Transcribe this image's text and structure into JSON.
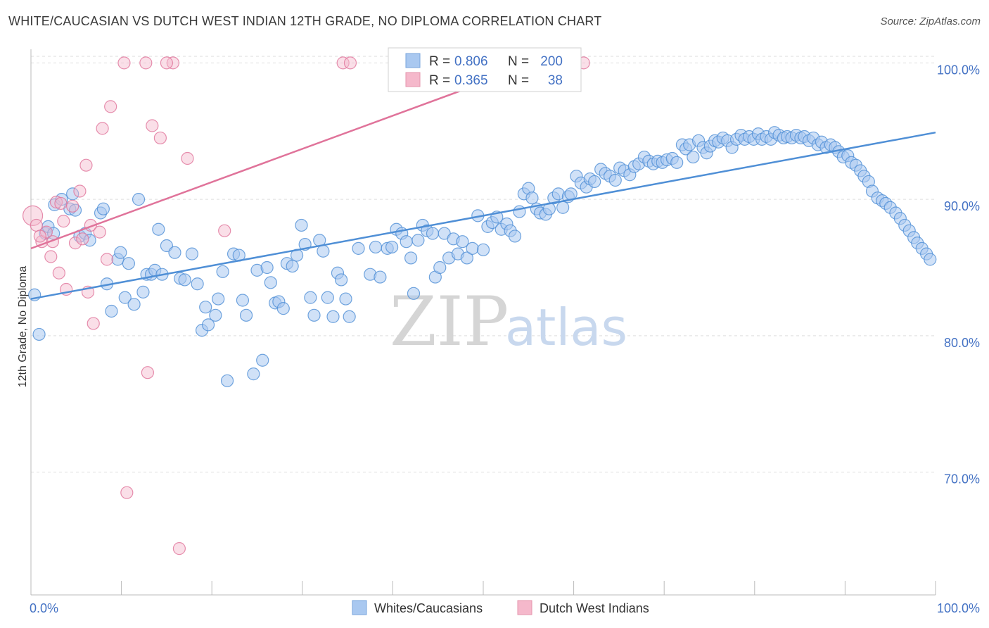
{
  "header": {
    "title": "WHITE/CAUCASIAN VS DUTCH WEST INDIAN 12TH GRADE, NO DIPLOMA CORRELATION CHART",
    "source": "Source: ZipAtlas.com"
  },
  "watermark": {
    "zip": "ZIP",
    "atlas": "atlas"
  },
  "stats": {
    "r_label": "R =",
    "n_label": "N =",
    "rows": [
      {
        "r": "0.806",
        "n": "200",
        "color": "#a9c8f0"
      },
      {
        "r": "0.365",
        "n": "38",
        "color": "#f5b8cb"
      }
    ]
  },
  "legend": {
    "items": [
      {
        "label": "Whites/Caucasians",
        "color": "#a9c8f0"
      },
      {
        "label": "Dutch West Indians",
        "color": "#f5b8cb"
      }
    ]
  },
  "chart_data": {
    "type": "scatter",
    "title": "WHITE/CAUCASIAN VS DUTCH WEST INDIAN 12TH GRADE, NO DIPLOMA CORRELATION CHART",
    "xlabel": "",
    "ylabel": "12th Grade, No Diploma",
    "xlim": [
      0,
      100
    ],
    "ylim": [
      61,
      101
    ],
    "x_tick_labels": [
      "0.0%",
      "100.0%"
    ],
    "y_ticks": [
      {
        "value": 70,
        "label": "70.0%"
      },
      {
        "value": 80,
        "label": "80.0%"
      },
      {
        "value": 90,
        "label": "90.0%"
      },
      {
        "value": 100,
        "label": "100.0%"
      }
    ],
    "grid": true,
    "series": [
      {
        "name": "Whites/Caucasians",
        "color": "#4f8fd6",
        "fill": "#a9c8f0",
        "trend": [
          [
            0,
            82.7
          ],
          [
            100,
            94.9
          ]
        ],
        "points": [
          [
            0.4,
            83.0
          ],
          [
            0.9,
            80.1
          ],
          [
            1.6,
            87.5
          ],
          [
            1.9,
            88.0
          ],
          [
            2.5,
            87.5
          ],
          [
            2.6,
            89.6
          ],
          [
            3.4,
            90.0
          ],
          [
            4.3,
            89.3
          ],
          [
            4.6,
            90.4
          ],
          [
            4.9,
            89.2
          ],
          [
            5.4,
            87.3
          ],
          [
            6.0,
            87.5
          ],
          [
            6.5,
            87.0
          ],
          [
            7.7,
            89.0
          ],
          [
            8.0,
            89.3
          ],
          [
            8.4,
            83.8
          ],
          [
            8.9,
            81.8
          ],
          [
            9.6,
            85.6
          ],
          [
            9.9,
            86.1
          ],
          [
            10.4,
            82.8
          ],
          [
            10.8,
            85.3
          ],
          [
            11.4,
            82.3
          ],
          [
            11.9,
            90.0
          ],
          [
            12.4,
            83.2
          ],
          [
            12.8,
            84.5
          ],
          [
            13.3,
            84.5
          ],
          [
            13.7,
            84.8
          ],
          [
            14.1,
            87.8
          ],
          [
            14.5,
            84.5
          ],
          [
            15.0,
            86.6
          ],
          [
            15.9,
            86.1
          ],
          [
            16.5,
            84.2
          ],
          [
            17.0,
            84.1
          ],
          [
            17.8,
            86.0
          ],
          [
            18.4,
            83.8
          ],
          [
            18.9,
            80.4
          ],
          [
            19.3,
            82.1
          ],
          [
            19.6,
            80.8
          ],
          [
            20.4,
            81.5
          ],
          [
            20.7,
            82.7
          ],
          [
            21.2,
            84.7
          ],
          [
            21.7,
            76.7
          ],
          [
            22.4,
            86.0
          ],
          [
            23.0,
            85.9
          ],
          [
            23.4,
            82.6
          ],
          [
            23.8,
            81.5
          ],
          [
            24.6,
            77.2
          ],
          [
            25.0,
            84.8
          ],
          [
            25.6,
            78.2
          ],
          [
            26.1,
            85.0
          ],
          [
            26.5,
            83.9
          ],
          [
            27.0,
            82.4
          ],
          [
            27.4,
            82.5
          ],
          [
            27.9,
            82.0
          ],
          [
            28.3,
            85.3
          ],
          [
            28.9,
            85.1
          ],
          [
            29.4,
            85.9
          ],
          [
            29.9,
            88.1
          ],
          [
            30.3,
            86.7
          ],
          [
            30.9,
            82.8
          ],
          [
            31.3,
            81.5
          ],
          [
            31.9,
            87.0
          ],
          [
            32.3,
            86.2
          ],
          [
            32.8,
            82.8
          ],
          [
            33.4,
            81.4
          ],
          [
            33.9,
            84.6
          ],
          [
            34.3,
            84.1
          ],
          [
            34.8,
            82.7
          ],
          [
            35.2,
            81.4
          ],
          [
            36.2,
            86.4
          ],
          [
            37.5,
            84.5
          ],
          [
            38.1,
            86.5
          ],
          [
            38.6,
            84.3
          ],
          [
            39.4,
            86.4
          ],
          [
            39.9,
            86.5
          ],
          [
            40.4,
            87.8
          ],
          [
            41.0,
            87.5
          ],
          [
            41.5,
            86.9
          ],
          [
            42.0,
            85.7
          ],
          [
            42.3,
            83.1
          ],
          [
            42.8,
            87.0
          ],
          [
            43.3,
            88.1
          ],
          [
            43.8,
            87.7
          ],
          [
            44.4,
            87.5
          ],
          [
            44.7,
            84.3
          ],
          [
            45.2,
            85.0
          ],
          [
            45.7,
            87.5
          ],
          [
            46.2,
            85.7
          ],
          [
            46.7,
            87.1
          ],
          [
            47.2,
            86.0
          ],
          [
            47.7,
            86.9
          ],
          [
            48.2,
            85.7
          ],
          [
            48.8,
            86.4
          ],
          [
            49.4,
            88.8
          ],
          [
            50.0,
            86.3
          ],
          [
            50.5,
            88.0
          ],
          [
            51.0,
            88.3
          ],
          [
            51.5,
            88.7
          ],
          [
            52.0,
            87.8
          ],
          [
            52.6,
            88.2
          ],
          [
            53.0,
            87.7
          ],
          [
            53.5,
            87.3
          ],
          [
            54.0,
            89.1
          ],
          [
            54.5,
            90.4
          ],
          [
            55.0,
            90.8
          ],
          [
            55.4,
            90.1
          ],
          [
            55.9,
            89.3
          ],
          [
            56.3,
            89.0
          ],
          [
            56.9,
            88.9
          ],
          [
            57.3,
            89.3
          ],
          [
            57.8,
            90.1
          ],
          [
            58.3,
            90.4
          ],
          [
            58.8,
            89.4
          ],
          [
            59.4,
            90.2
          ],
          [
            59.7,
            90.4
          ],
          [
            60.3,
            91.7
          ],
          [
            60.8,
            91.2
          ],
          [
            61.4,
            90.9
          ],
          [
            61.8,
            91.5
          ],
          [
            62.3,
            91.3
          ],
          [
            63.0,
            92.2
          ],
          [
            63.5,
            91.9
          ],
          [
            64.0,
            91.7
          ],
          [
            64.6,
            91.4
          ],
          [
            65.1,
            92.3
          ],
          [
            65.6,
            92.1
          ],
          [
            66.2,
            91.8
          ],
          [
            66.7,
            92.4
          ],
          [
            67.2,
            92.6
          ],
          [
            67.8,
            93.1
          ],
          [
            68.3,
            92.8
          ],
          [
            68.8,
            92.6
          ],
          [
            69.3,
            92.8
          ],
          [
            69.8,
            92.7
          ],
          [
            70.3,
            92.9
          ],
          [
            70.9,
            93.0
          ],
          [
            71.4,
            92.7
          ],
          [
            72.0,
            94.0
          ],
          [
            72.4,
            93.7
          ],
          [
            72.8,
            94.0
          ],
          [
            73.2,
            93.1
          ],
          [
            73.8,
            94.3
          ],
          [
            74.3,
            93.8
          ],
          [
            74.7,
            93.4
          ],
          [
            75.1,
            93.9
          ],
          [
            75.6,
            94.3
          ],
          [
            76.0,
            94.2
          ],
          [
            76.5,
            94.5
          ],
          [
            77.0,
            94.3
          ],
          [
            77.5,
            93.8
          ],
          [
            78.0,
            94.4
          ],
          [
            78.5,
            94.7
          ],
          [
            78.9,
            94.4
          ],
          [
            79.4,
            94.6
          ],
          [
            79.9,
            94.4
          ],
          [
            80.4,
            94.8
          ],
          [
            80.8,
            94.4
          ],
          [
            81.3,
            94.6
          ],
          [
            81.8,
            94.4
          ],
          [
            82.2,
            94.9
          ],
          [
            82.7,
            94.7
          ],
          [
            83.2,
            94.5
          ],
          [
            83.6,
            94.6
          ],
          [
            84.1,
            94.5
          ],
          [
            84.6,
            94.7
          ],
          [
            85.1,
            94.5
          ],
          [
            85.5,
            94.6
          ],
          [
            86.0,
            94.3
          ],
          [
            86.5,
            94.5
          ],
          [
            87.0,
            94.0
          ],
          [
            87.4,
            94.2
          ],
          [
            87.9,
            93.8
          ],
          [
            88.4,
            94.0
          ],
          [
            88.9,
            93.8
          ],
          [
            89.3,
            93.5
          ],
          [
            89.8,
            93.1
          ],
          [
            90.3,
            93.2
          ],
          [
            90.7,
            92.7
          ],
          [
            91.2,
            92.5
          ],
          [
            91.7,
            92.1
          ],
          [
            92.1,
            91.7
          ],
          [
            92.6,
            91.3
          ],
          [
            93.0,
            90.6
          ],
          [
            93.6,
            90.1
          ],
          [
            94.1,
            89.9
          ],
          [
            94.5,
            89.7
          ],
          [
            95.0,
            89.4
          ],
          [
            95.6,
            89.0
          ],
          [
            96.1,
            88.6
          ],
          [
            96.6,
            88.1
          ],
          [
            97.1,
            87.7
          ],
          [
            97.6,
            87.2
          ],
          [
            98.0,
            86.8
          ],
          [
            98.5,
            86.4
          ],
          [
            99.0,
            86.0
          ],
          [
            99.4,
            85.6
          ]
        ]
      },
      {
        "name": "Dutch West Indians",
        "color": "#e0739a",
        "fill": "#f5b8cb",
        "trend": [
          [
            0,
            86.4
          ],
          [
            55.9,
            100.0
          ]
        ],
        "points": [
          [
            0.2,
            88.8
          ],
          [
            0.6,
            88.1
          ],
          [
            1.2,
            86.9
          ],
          [
            1.7,
            87.6
          ],
          [
            2.2,
            85.8
          ],
          [
            2.4,
            86.9
          ],
          [
            2.8,
            89.8
          ],
          [
            3.1,
            84.6
          ],
          [
            3.6,
            88.4
          ],
          [
            3.9,
            83.4
          ],
          [
            4.6,
            89.5
          ],
          [
            4.9,
            86.8
          ],
          [
            5.4,
            90.6
          ],
          [
            5.7,
            87.1
          ],
          [
            6.1,
            92.5
          ],
          [
            6.3,
            83.2
          ],
          [
            6.6,
            88.1
          ],
          [
            6.9,
            80.9
          ],
          [
            7.6,
            87.6
          ],
          [
            7.9,
            95.2
          ],
          [
            8.4,
            85.6
          ],
          [
            8.8,
            96.8
          ],
          [
            10.3,
            100.0
          ],
          [
            10.6,
            68.5
          ],
          [
            12.7,
            100.0
          ],
          [
            12.9,
            77.3
          ],
          [
            13.4,
            95.4
          ],
          [
            14.3,
            94.5
          ],
          [
            15.7,
            100.0
          ],
          [
            16.4,
            64.4
          ],
          [
            17.3,
            93.0
          ],
          [
            21.4,
            87.7
          ],
          [
            34.5,
            100.0
          ],
          [
            35.3,
            100.0
          ],
          [
            61.1,
            100.0
          ],
          [
            15.0,
            100.0
          ],
          [
            3.3,
            89.7
          ],
          [
            1.0,
            87.3
          ]
        ]
      }
    ]
  }
}
